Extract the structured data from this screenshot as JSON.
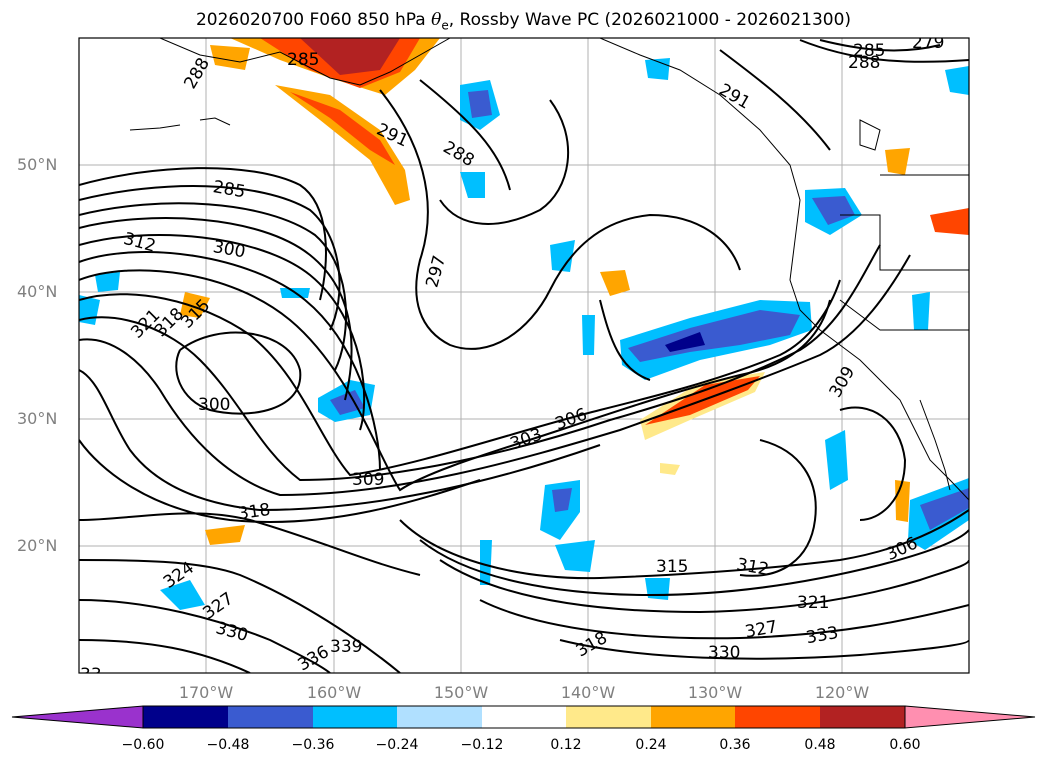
{
  "title": {
    "prefix": "2026020700 F060 850 hPa ",
    "symbol": "θ",
    "symbol_sub": "e",
    "suffix": ", Rossby Wave PC (2026021000 - 2026021300)"
  },
  "map": {
    "lat_labels": [
      "50°N",
      "40°N",
      "30°N",
      "20°N"
    ],
    "lon_labels": [
      "170°W",
      "160°W",
      "150°W",
      "140°W",
      "130°W",
      "120°W"
    ],
    "contour_labels": [
      "288",
      "285",
      "285",
      "288",
      "279",
      "291",
      "288",
      "291",
      "285",
      "300",
      "312",
      "297",
      "321",
      "318",
      "315",
      "300",
      "303",
      "306",
      "309",
      "309",
      "318",
      "324",
      "327",
      "330",
      "336",
      "339",
      "315",
      "312",
      "321",
      "327",
      "330",
      "333",
      "318",
      "306",
      "33"
    ]
  },
  "colorbar": {
    "ticks": [
      "−0.60",
      "−0.48",
      "−0.36",
      "−0.24",
      "−0.12",
      "0.12",
      "0.24",
      "0.36",
      "0.48",
      "0.60"
    ],
    "colors": [
      "#9a32cd",
      "#00008b",
      "#3a5bd0",
      "#00bfff",
      "#b0e0ff",
      "#ffffff",
      "#ffe98a",
      "#ffa500",
      "#ff4500",
      "#b22222",
      "#ff8fb0"
    ]
  },
  "colors": {
    "land_outline": "#000000",
    "grid": "#b0b0b0",
    "axis_label": "#808080"
  }
}
